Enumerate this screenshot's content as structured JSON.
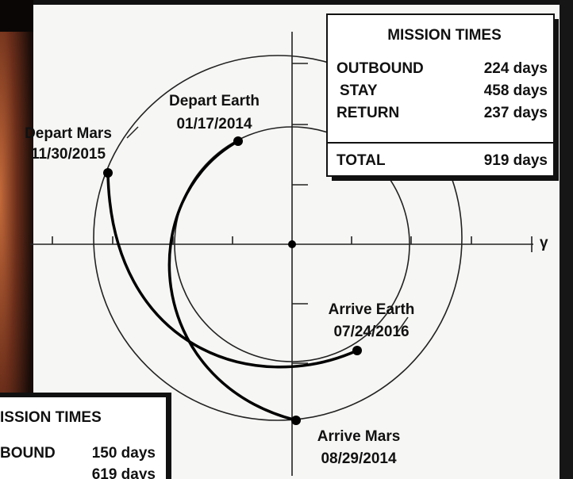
{
  "diagram": {
    "axis_label": "γ",
    "events": [
      {
        "label": "Depart Earth",
        "date": "01/17/2014"
      },
      {
        "label": "Depart Mars",
        "date": "11/30/2015"
      },
      {
        "label": "Arrive Earth",
        "date": "07/24/2016"
      },
      {
        "label": "Arrive Mars",
        "date": "08/29/2014"
      }
    ],
    "mission_times": {
      "title": "MISSION TIMES",
      "rows": [
        [
          "OUTBOUND",
          "224 days"
        ],
        [
          "STAY",
          "458 days"
        ],
        [
          "RETURN",
          "237 days"
        ]
      ],
      "total": [
        "TOTAL",
        "919 days"
      ]
    },
    "partial_box": {
      "title": "ISSION TIMES",
      "rows": [
        [
          "BOUND",
          "150 days"
        ],
        [
          "",
          "619 days"
        ]
      ]
    }
  }
}
